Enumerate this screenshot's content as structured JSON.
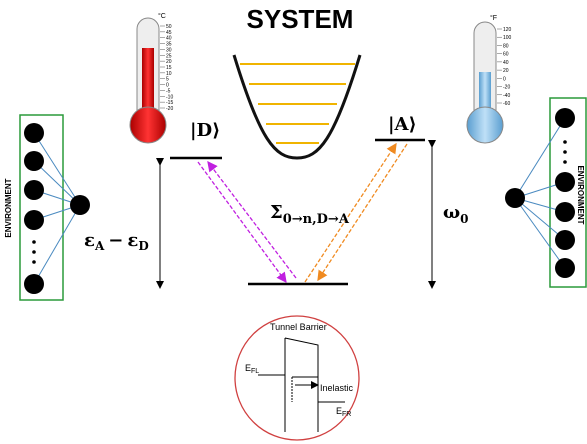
{
  "title": "SYSTEM",
  "thermometer_left": {
    "unit": "°C",
    "scale": [
      "50",
      "45",
      "40",
      "35",
      "30",
      "25",
      "20",
      "15",
      "10",
      "5",
      "0",
      "-5",
      "-10",
      "-15",
      "-20"
    ]
  },
  "thermometer_right": {
    "unit": "°F",
    "scale": [
      "120",
      "100",
      "80",
      "60",
      "40",
      "20",
      "0",
      "-20",
      "-40",
      "-60"
    ]
  },
  "state_d": "|D⟩",
  "state_a": "|A⟩",
  "coupling": {
    "symbol": "Σ",
    "subscript": "0→n,D→A"
  },
  "frequency": {
    "symbol": "ω",
    "subscript": "0"
  },
  "energy_gap": {
    "first": "ε",
    "first_sub": "A",
    "minus": "−",
    "second": "ε",
    "second_sub": "D"
  },
  "environment_left": "ENVIRONMENT",
  "environment_right": "ENVIRONMENT",
  "tunnel": {
    "title": "Tunnel Barrier",
    "efl": "E",
    "efl_sub": "FL",
    "inelastic": "Inelastic",
    "efr": "E",
    "efr_sub": "FR"
  }
}
